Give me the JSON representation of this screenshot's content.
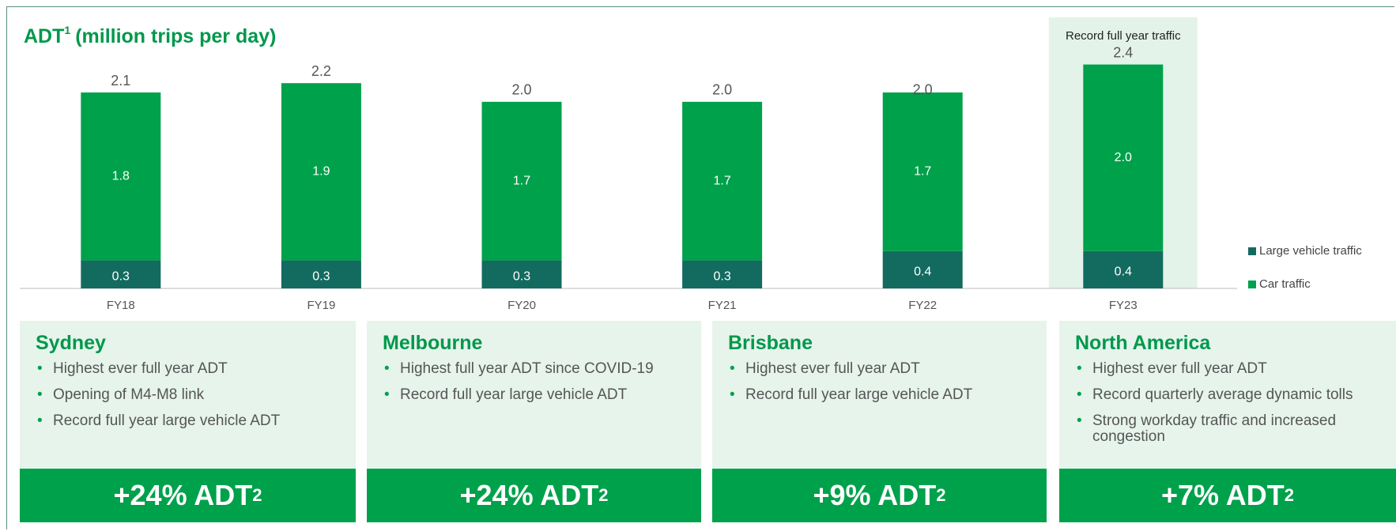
{
  "chart_data": {
    "type": "bar",
    "stacked": true,
    "title": "ADT",
    "title_sup": "1",
    "title_rest": "(million trips per day)",
    "categories": [
      "FY18",
      "FY19",
      "FY20",
      "FY21",
      "FY22",
      "FY23"
    ],
    "series": [
      {
        "name": "Large vehicle traffic",
        "color": "#136b60",
        "values": [
          0.3,
          0.3,
          0.3,
          0.3,
          0.4,
          0.4
        ]
      },
      {
        "name": "Car traffic",
        "color": "#00a14b",
        "values": [
          1.8,
          1.9,
          1.7,
          1.7,
          1.7,
          2.0
        ],
        "value_labels": [
          "1.8",
          "1.9",
          "1.7",
          "1.7",
          "1.7",
          "2.0"
        ]
      }
    ],
    "totals": {
      "values": [
        2.1,
        2.2,
        2.0,
        2.0,
        2.0,
        2.4
      ],
      "value_labels": [
        "2.1",
        "2.2",
        "2.0",
        "2.0",
        "2.0",
        "2.4"
      ]
    },
    "ylim": [
      0,
      2.6
    ],
    "highlight": "FY23",
    "annotation": "Record full year traffic"
  },
  "regions": [
    {
      "name": "Sydney",
      "bullets": [
        "Highest ever full year ADT",
        "Opening of M4-M8 link",
        "Record full year large vehicle ADT"
      ],
      "change": "+24% ADT",
      "change_sup": "2"
    },
    {
      "name": "Melbourne",
      "bullets": [
        "Highest full year ADT since COVID-19",
        "Record full year large vehicle ADT"
      ],
      "change": "+24% ADT",
      "change_sup": "2"
    },
    {
      "name": "Brisbane",
      "bullets": [
        "Highest ever full year ADT",
        "Record full year large vehicle ADT"
      ],
      "change": "+9% ADT",
      "change_sup": "2"
    },
    {
      "name": "North America",
      "bullets": [
        "Highest ever full year ADT",
        "Record quarterly average dynamic tolls",
        "Strong workday traffic and increased congestion"
      ],
      "change": "+7% ADT",
      "change_sup": "2"
    }
  ]
}
